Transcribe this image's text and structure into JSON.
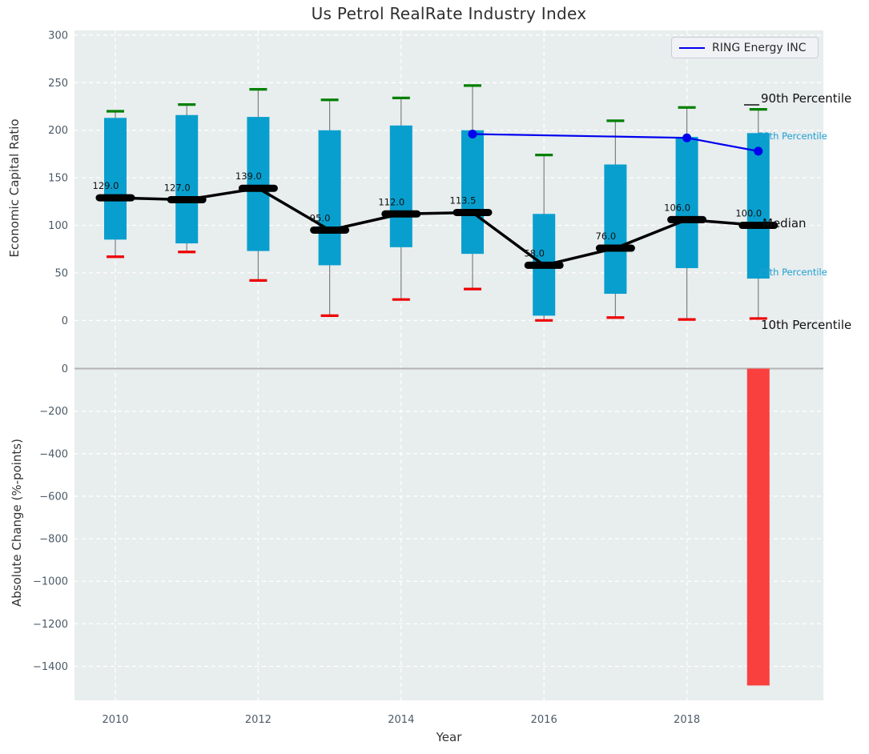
{
  "title": "Us Petrol RealRate Industry Index",
  "legend": {
    "label": "RING Energy INC"
  },
  "annotations": {
    "p90": "90th Percentile",
    "p75": "75th Percentile",
    "median": "Median",
    "p25": "25th Percentile",
    "p10": "10th Percentile"
  },
  "colors": {
    "plot_bg": "#e8edee",
    "grid": "#ffffff",
    "box_fill": "#089fce",
    "cap_top": "#008000",
    "cap_bottom": "#ee0000",
    "whisker": "#7f7f7f",
    "median": "#000000",
    "overlay_line": "#0000ee",
    "bottom_bar": "#fa3f3f",
    "zero_line": "#b3b3b3",
    "tick_label": "#4c5a68",
    "percentile_text": "#1b9fd0"
  },
  "chart_data": [
    {
      "type": "box",
      "title": "Us Petrol RealRate Industry Index",
      "ylabel": "Economic Capital Ratio",
      "categories": [
        2010,
        2011,
        2012,
        2013,
        2014,
        2015,
        2016,
        2017,
        2018,
        2019
      ],
      "percentiles": {
        "p90": [
          220,
          227,
          243,
          232,
          234,
          247,
          174,
          210,
          224,
          222
        ],
        "p75": [
          213,
          216,
          214,
          200,
          205,
          200,
          112,
          164,
          193,
          197
        ],
        "median": [
          129,
          127,
          139,
          95,
          112,
          113.5,
          58,
          76,
          106,
          100
        ],
        "p25": [
          85,
          81,
          73,
          58,
          77,
          70,
          5,
          28,
          55,
          44
        ],
        "p10": [
          67,
          72,
          42,
          5,
          22,
          33,
          0,
          3,
          1,
          2
        ]
      },
      "median_labels": [
        "129.0",
        "127.0",
        "139.0",
        "95.0",
        "112.0",
        "113.5",
        "58.0",
        "76.0",
        "106.0",
        "100.0"
      ],
      "overlay_line": {
        "name": "RING Energy INC",
        "x": [
          2015,
          2018,
          2019
        ],
        "values": [
          196,
          192,
          178
        ]
      },
      "ylim": [
        -25,
        305
      ],
      "yticks": [
        0,
        50,
        100,
        150,
        200,
        250,
        300
      ],
      "xticks": [
        2010,
        2012,
        2014,
        2016,
        2018
      ],
      "grid": true,
      "legend_position": "upper right"
    },
    {
      "type": "bar",
      "ylabel": "Absolute Change (%-points)",
      "xlabel": "Year",
      "categories": [
        2010,
        2011,
        2012,
        2013,
        2014,
        2015,
        2016,
        2017,
        2018,
        2019
      ],
      "values": [
        null,
        null,
        null,
        null,
        null,
        null,
        null,
        null,
        null,
        -1490
      ],
      "ylim": [
        -1560,
        115
      ],
      "yticks": [
        0,
        -200,
        -400,
        -600,
        -800,
        -1000,
        -1200,
        -1400
      ],
      "xticks": [
        2010,
        2012,
        2014,
        2016,
        2018
      ],
      "grid": true
    }
  ]
}
